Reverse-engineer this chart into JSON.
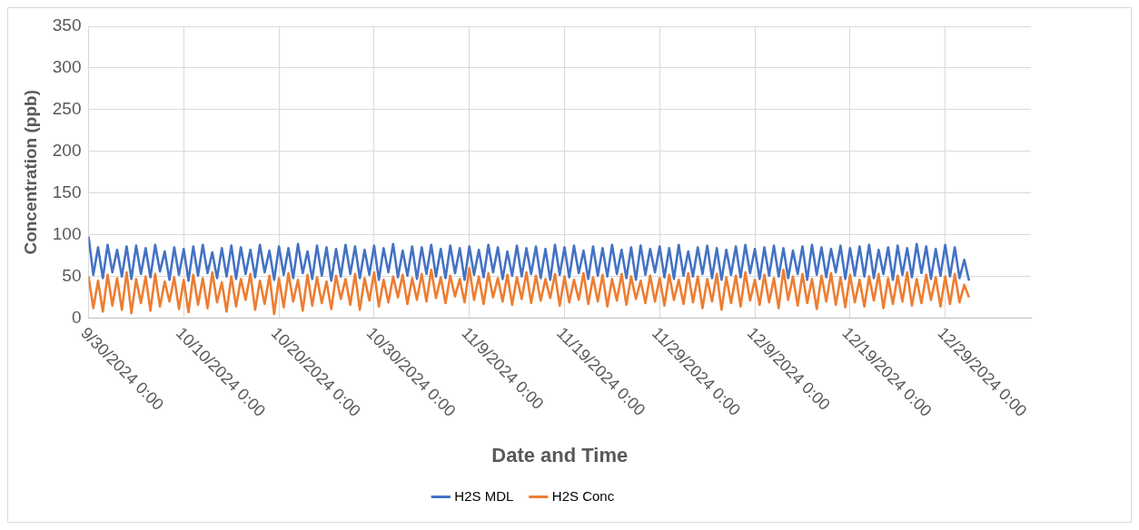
{
  "chart_data": {
    "type": "line",
    "xlabel": "Date and Time",
    "ylabel": "Concentration (ppb)",
    "x": [
      "2024-09-30T00:00",
      "2024-09-30T12:00",
      "2024-10-01T00:00",
      "2024-10-01T12:00",
      "2024-10-02T00:00",
      "2024-10-02T12:00",
      "2024-10-03T00:00",
      "2024-10-03T12:00",
      "2024-10-04T00:00",
      "2024-10-04T12:00",
      "2024-10-05T00:00",
      "2024-10-05T12:00",
      "2024-10-06T00:00",
      "2024-10-06T12:00",
      "2024-10-07T00:00",
      "2024-10-07T12:00",
      "2024-10-08T00:00",
      "2024-10-08T12:00",
      "2024-10-09T00:00",
      "2024-10-09T12:00",
      "2024-10-10T00:00",
      "2024-10-10T12:00",
      "2024-10-11T00:00",
      "2024-10-11T12:00",
      "2024-10-12T00:00",
      "2024-10-12T12:00",
      "2024-10-13T00:00",
      "2024-10-13T12:00",
      "2024-10-14T00:00",
      "2024-10-14T12:00",
      "2024-10-15T00:00",
      "2024-10-15T12:00",
      "2024-10-16T00:00",
      "2024-10-16T12:00",
      "2024-10-17T00:00",
      "2024-10-17T12:00",
      "2024-10-18T00:00",
      "2024-10-18T12:00",
      "2024-10-19T00:00",
      "2024-10-19T12:00",
      "2024-10-20T00:00",
      "2024-10-20T12:00",
      "2024-10-21T00:00",
      "2024-10-21T12:00",
      "2024-10-22T00:00",
      "2024-10-22T12:00",
      "2024-10-23T00:00",
      "2024-10-23T12:00",
      "2024-10-24T00:00",
      "2024-10-24T12:00",
      "2024-10-25T00:00",
      "2024-10-25T12:00",
      "2024-10-26T00:00",
      "2024-10-26T12:00",
      "2024-10-27T00:00",
      "2024-10-27T12:00",
      "2024-10-28T00:00",
      "2024-10-28T12:00",
      "2024-10-29T00:00",
      "2024-10-29T12:00",
      "2024-10-30T00:00",
      "2024-10-30T12:00",
      "2024-10-31T00:00",
      "2024-10-31T12:00",
      "2024-11-01T00:00",
      "2024-11-01T12:00",
      "2024-11-02T00:00",
      "2024-11-02T12:00",
      "2024-11-03T00:00",
      "2024-11-03T12:00",
      "2024-11-04T00:00",
      "2024-11-04T12:00",
      "2024-11-05T00:00",
      "2024-11-05T12:00",
      "2024-11-06T00:00",
      "2024-11-06T12:00",
      "2024-11-07T00:00",
      "2024-11-07T12:00",
      "2024-11-08T00:00",
      "2024-11-08T12:00",
      "2024-11-09T00:00",
      "2024-11-09T12:00",
      "2024-11-10T00:00",
      "2024-11-10T12:00",
      "2024-11-11T00:00",
      "2024-11-11T12:00",
      "2024-11-12T00:00",
      "2024-11-12T12:00",
      "2024-11-13T00:00",
      "2024-11-13T12:00",
      "2024-11-14T00:00",
      "2024-11-14T12:00",
      "2024-11-15T00:00",
      "2024-11-15T12:00",
      "2024-11-16T00:00",
      "2024-11-16T12:00",
      "2024-11-17T00:00",
      "2024-11-17T12:00",
      "2024-11-18T00:00",
      "2024-11-18T12:00",
      "2024-11-19T00:00",
      "2024-11-19T12:00",
      "2024-11-20T00:00",
      "2024-11-20T12:00",
      "2024-11-21T00:00",
      "2024-11-21T12:00",
      "2024-11-22T00:00",
      "2024-11-22T12:00",
      "2024-11-23T00:00",
      "2024-11-23T12:00",
      "2024-11-24T00:00",
      "2024-11-24T12:00",
      "2024-11-25T00:00",
      "2024-11-25T12:00",
      "2024-11-26T00:00",
      "2024-11-26T12:00",
      "2024-11-27T00:00",
      "2024-11-27T12:00",
      "2024-11-28T00:00",
      "2024-11-28T12:00",
      "2024-11-29T00:00",
      "2024-11-29T12:00",
      "2024-11-30T00:00",
      "2024-11-30T12:00",
      "2024-12-01T00:00",
      "2024-12-01T12:00",
      "2024-12-02T00:00",
      "2024-12-02T12:00",
      "2024-12-03T00:00",
      "2024-12-03T12:00",
      "2024-12-04T00:00",
      "2024-12-04T12:00",
      "2024-12-05T00:00",
      "2024-12-05T12:00",
      "2024-12-06T00:00",
      "2024-12-06T12:00",
      "2024-12-07T00:00",
      "2024-12-07T12:00",
      "2024-12-08T00:00",
      "2024-12-08T12:00",
      "2024-12-09T00:00",
      "2024-12-09T12:00",
      "2024-12-10T00:00",
      "2024-12-10T12:00",
      "2024-12-11T00:00",
      "2024-12-11T12:00",
      "2024-12-12T00:00",
      "2024-12-12T12:00",
      "2024-12-13T00:00",
      "2024-12-13T12:00",
      "2024-12-14T00:00",
      "2024-12-14T12:00",
      "2024-12-15T00:00",
      "2024-12-15T12:00",
      "2024-12-16T00:00",
      "2024-12-16T12:00",
      "2024-12-17T00:00",
      "2024-12-17T12:00",
      "2024-12-18T00:00",
      "2024-12-18T12:00",
      "2024-12-19T00:00",
      "2024-12-19T12:00",
      "2024-12-20T00:00",
      "2024-12-20T12:00",
      "2024-12-21T00:00",
      "2024-12-21T12:00",
      "2024-12-22T00:00",
      "2024-12-22T12:00",
      "2024-12-23T00:00",
      "2024-12-23T12:00",
      "2024-12-24T00:00",
      "2024-12-24T12:00",
      "2024-12-25T00:00",
      "2024-12-25T12:00",
      "2024-12-26T00:00",
      "2024-12-26T12:00",
      "2024-12-27T00:00",
      "2024-12-27T12:00",
      "2024-12-28T00:00",
      "2024-12-28T12:00",
      "2024-12-29T00:00",
      "2024-12-29T12:00",
      "2024-12-30T00:00",
      "2024-12-30T12:00",
      "2024-12-31T00:00",
      "2024-12-31T12:00"
    ],
    "series": [
      {
        "name": "H2S MDL",
        "color": "#4472c4",
        "values": [
          98,
          52,
          85,
          48,
          88,
          55,
          82,
          50,
          86,
          47,
          87,
          53,
          84,
          49,
          88,
          56,
          80,
          46,
          85,
          52,
          83,
          45,
          86,
          51,
          88,
          54,
          79,
          48,
          84,
          50,
          87,
          47,
          85,
          53,
          82,
          49,
          88,
          55,
          81,
          46,
          86,
          52,
          84,
          48,
          89,
          54,
          80,
          47,
          87,
          51,
          85,
          45,
          83,
          50,
          88,
          53,
          86,
          48,
          82,
          52,
          87,
          46,
          84,
          55,
          89,
          49,
          81,
          51,
          86,
          47,
          85,
          53,
          88,
          50,
          83,
          48,
          87,
          54,
          84,
          46,
          86,
          52,
          82,
          49,
          88,
          55,
          85,
          47,
          80,
          51,
          87,
          50,
          84,
          53,
          86,
          48,
          83,
          46,
          88,
          52,
          85,
          49,
          87,
          54,
          81,
          47,
          86,
          51,
          84,
          50,
          88,
          53,
          82,
          48,
          85,
          46,
          87,
          52,
          83,
          55,
          86,
          49,
          84,
          47,
          88,
          51,
          80,
          50,
          85,
          53,
          87,
          48,
          84,
          46,
          82,
          52,
          86,
          49,
          88,
          54,
          83,
          47,
          85,
          51,
          87,
          50,
          84,
          48,
          81,
          53,
          86,
          46,
          88,
          52,
          85,
          49,
          83,
          55,
          87,
          47,
          84,
          51,
          86,
          50,
          88,
          48,
          82,
          53,
          85,
          46,
          87,
          52,
          84,
          49,
          89,
          54,
          86,
          47,
          83,
          51,
          88,
          50,
          85,
          48,
          70,
          45
        ]
      },
      {
        "name": "H2S Conc",
        "color": "#ed7d31",
        "values": [
          50,
          12,
          45,
          8,
          52,
          15,
          48,
          10,
          55,
          6,
          47,
          18,
          50,
          9,
          53,
          14,
          44,
          20,
          49,
          11,
          46,
          7,
          52,
          16,
          48,
          12,
          55,
          19,
          43,
          8,
          50,
          14,
          47,
          22,
          53,
          10,
          45,
          17,
          51,
          5,
          48,
          13,
          54,
          20,
          46,
          9,
          52,
          15,
          49,
          18,
          44,
          11,
          51,
          23,
          47,
          16,
          53,
          10,
          48,
          21,
          55,
          14,
          46,
          19,
          50,
          25,
          52,
          17,
          48,
          22,
          53,
          20,
          58,
          24,
          49,
          18,
          51,
          26,
          47,
          19,
          60,
          22,
          50,
          17,
          54,
          25,
          48,
          20,
          52,
          16,
          49,
          23,
          55,
          18,
          51,
          21,
          47,
          24,
          53,
          15,
          50,
          19,
          46,
          22,
          54,
          17,
          49,
          20,
          52,
          14,
          47,
          21,
          53,
          16,
          50,
          23,
          45,
          18,
          51,
          20,
          48,
          15,
          52,
          22,
          46,
          17,
          54,
          19,
          50,
          12,
          47,
          20,
          53,
          10,
          49,
          18,
          51,
          14,
          55,
          21,
          46,
          16,
          52,
          19,
          48,
          12,
          58,
          22,
          50,
          15,
          53,
          18,
          47,
          11,
          51,
          20,
          54,
          16,
          49,
          13,
          52,
          19,
          46,
          14,
          50,
          21,
          53,
          12,
          48,
          17,
          51,
          20,
          55,
          15,
          47,
          18,
          52,
          22,
          49,
          14,
          50,
          17,
          53,
          19,
          40,
          25
        ]
      }
    ],
    "xlim": [
      "2024-09-30",
      "2025-01-07"
    ],
    "xticks": [
      {
        "value": "2024-09-30",
        "label": "9/30/2024 0:00"
      },
      {
        "value": "2024-10-10",
        "label": "10/10/2024 0:00"
      },
      {
        "value": "2024-10-20",
        "label": "10/20/2024 0:00"
      },
      {
        "value": "2024-10-30",
        "label": "10/30/2024 0:00"
      },
      {
        "value": "2024-11-09",
        "label": "11/9/2024 0:00"
      },
      {
        "value": "2024-11-19",
        "label": "11/19/2024 0:00"
      },
      {
        "value": "2024-11-29",
        "label": "11/29/2024 0:00"
      },
      {
        "value": "2024-12-09",
        "label": "12/9/2024 0:00"
      },
      {
        "value": "2024-12-19",
        "label": "12/19/2024 0:00"
      },
      {
        "value": "2024-12-29",
        "label": "12/29/2024 0:00"
      }
    ],
    "ylim": [
      0,
      350
    ],
    "yticks": [
      0,
      50,
      100,
      150,
      200,
      250,
      300,
      350
    ],
    "grid": true,
    "legend": "bottom"
  }
}
